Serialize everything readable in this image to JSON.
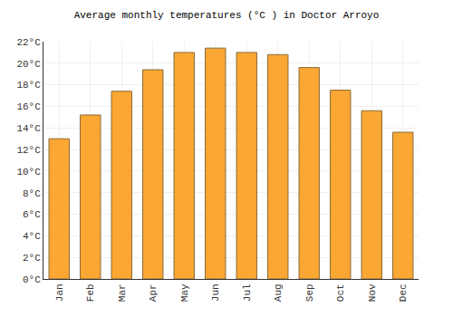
{
  "chart_data": {
    "type": "bar",
    "title": "Average monthly temperatures (°C ) in Doctor Arroyo",
    "categories": [
      "Jan",
      "Feb",
      "Mar",
      "Apr",
      "May",
      "Jun",
      "Jul",
      "Aug",
      "Sep",
      "Oct",
      "Nov",
      "Dec"
    ],
    "values": [
      13.0,
      15.2,
      17.4,
      19.4,
      21.0,
      21.4,
      21.0,
      20.8,
      19.6,
      17.5,
      15.6,
      13.6
    ],
    "color": "#fba733",
    "ylim": [
      0,
      22
    ],
    "yticks": [
      {
        "value": 0,
        "label": "0°C"
      },
      {
        "value": 2,
        "label": "2°C"
      },
      {
        "value": 4,
        "label": "4°C"
      },
      {
        "value": 6,
        "label": "6°C"
      },
      {
        "value": 8,
        "label": "8°C"
      },
      {
        "value": 10,
        "label": "10°C"
      },
      {
        "value": 12,
        "label": "12°C"
      },
      {
        "value": 14,
        "label": "14°C"
      },
      {
        "value": 16,
        "label": "16°C"
      },
      {
        "value": 18,
        "label": "18°C"
      },
      {
        "value": 20,
        "label": "20°C"
      },
      {
        "value": 22,
        "label": "22°C"
      }
    ],
    "grid": true
  }
}
